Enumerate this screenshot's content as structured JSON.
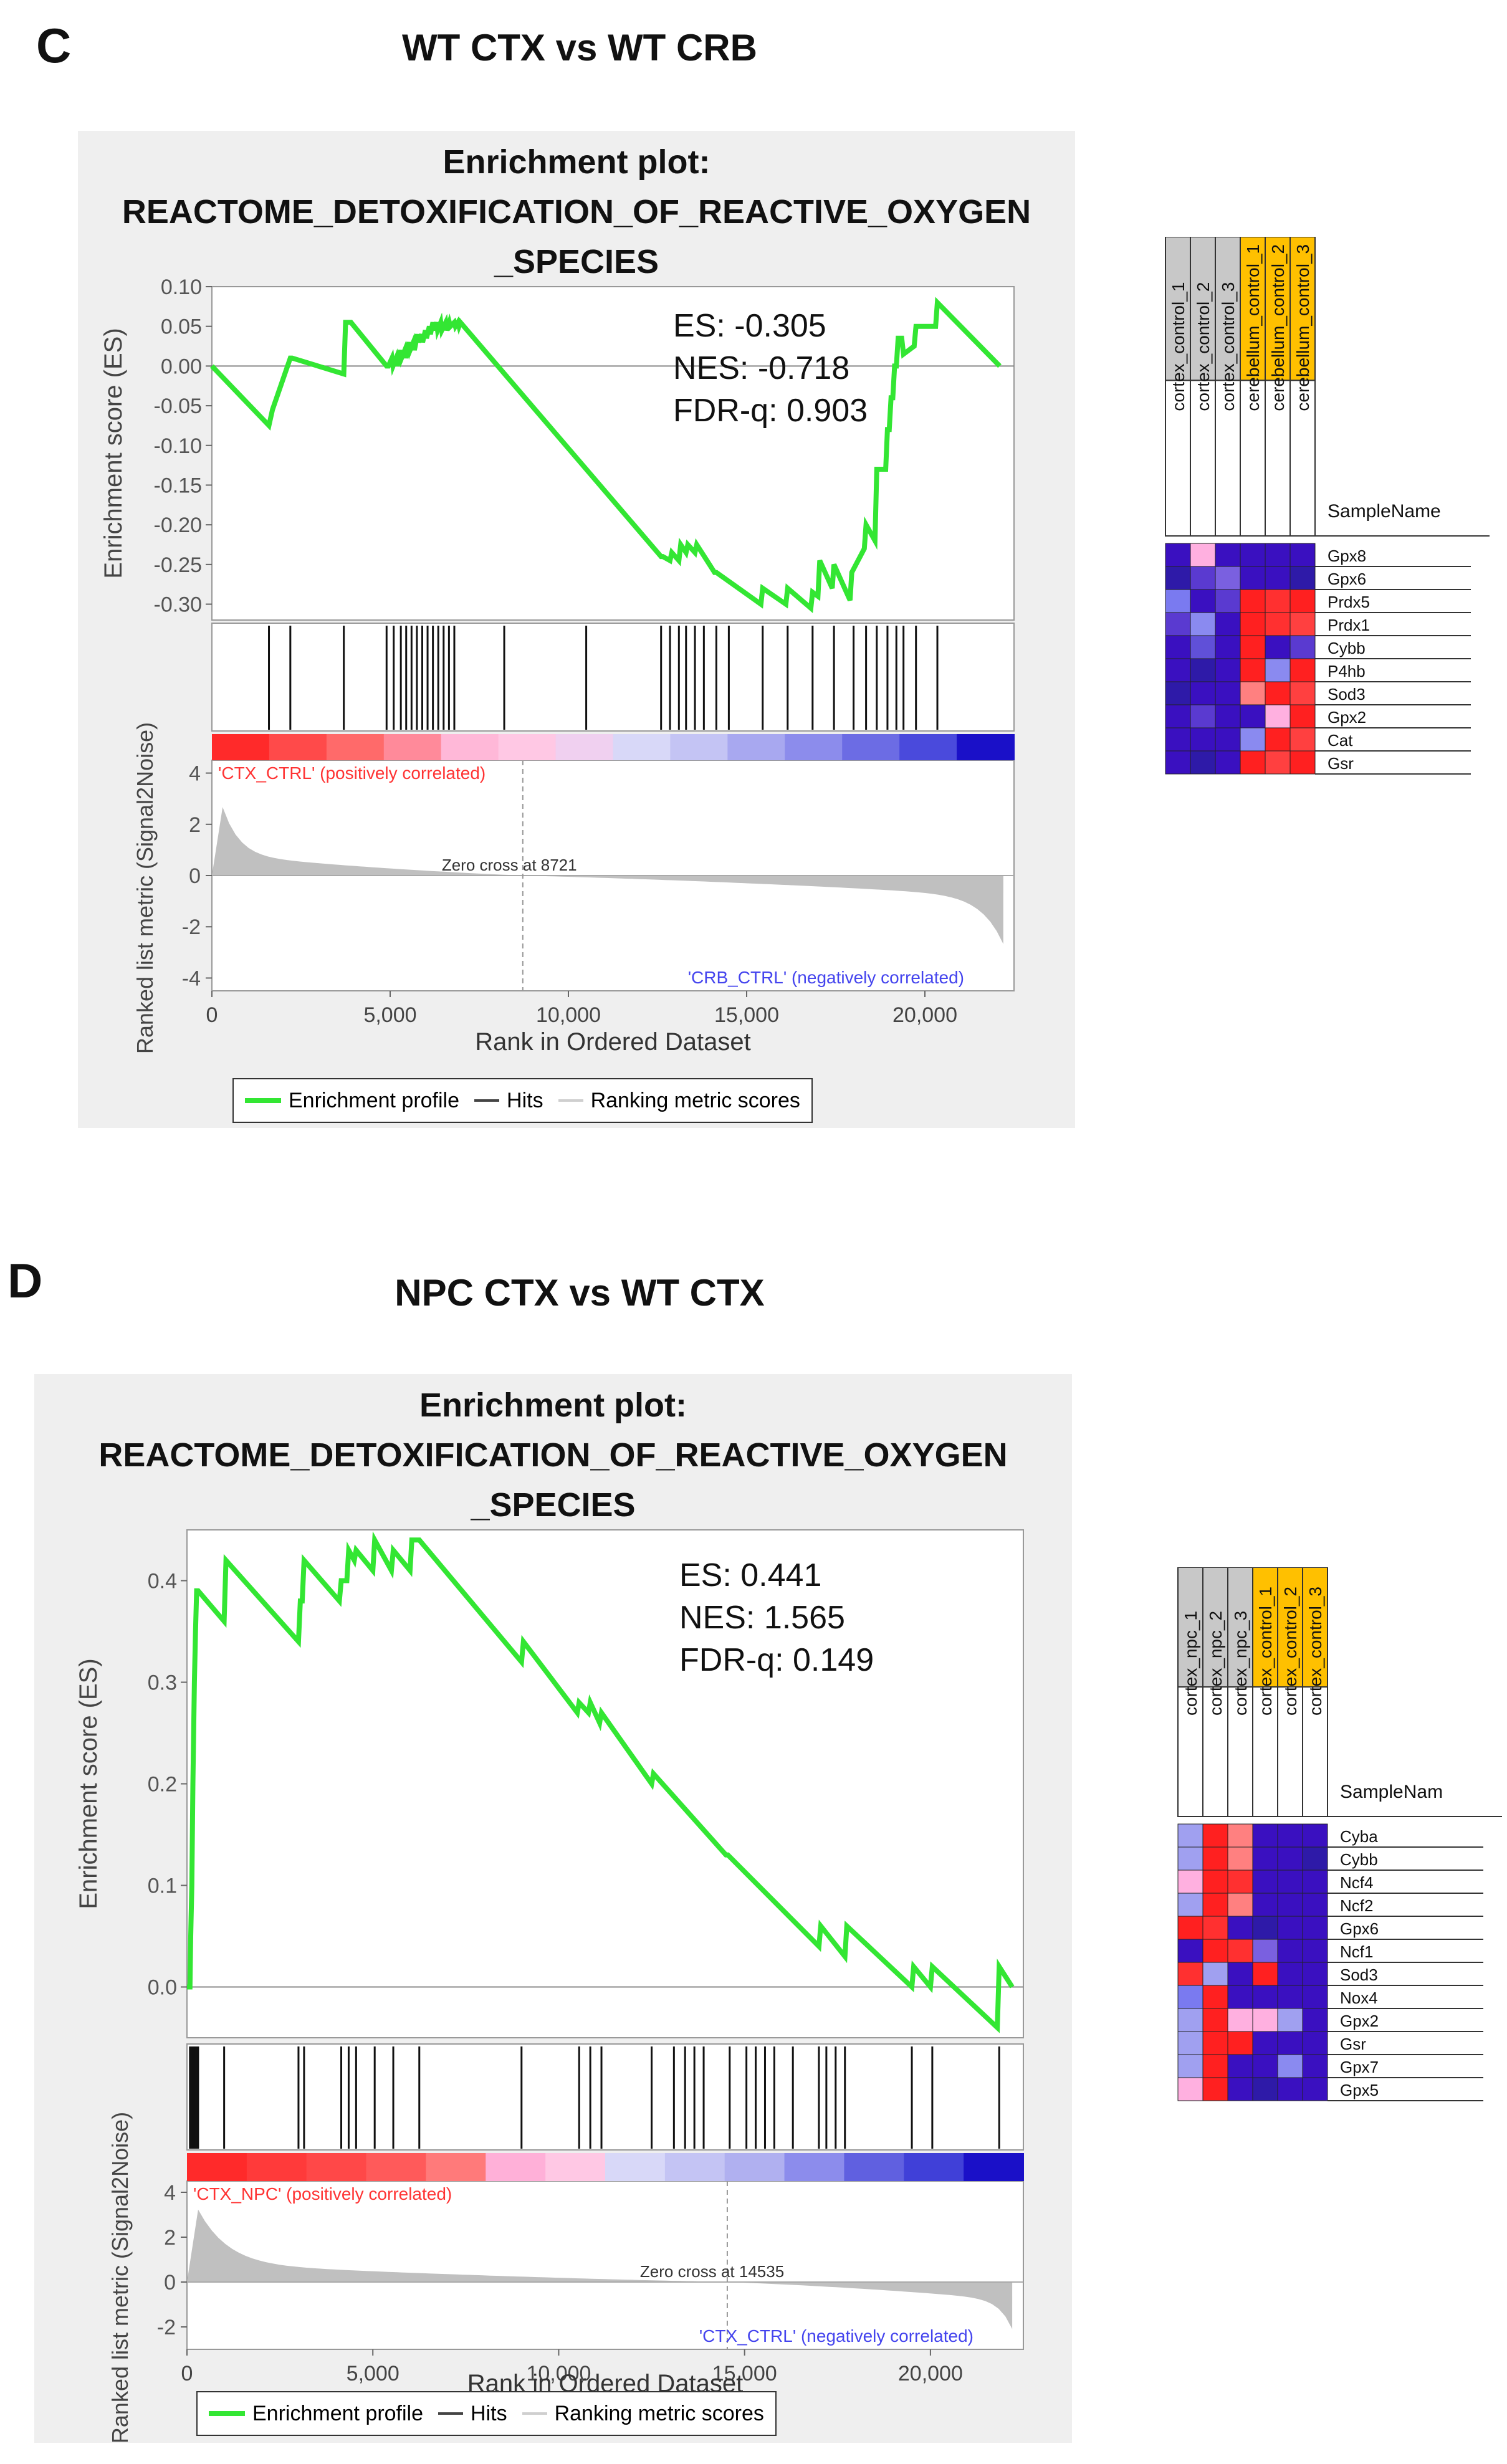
{
  "panels": [
    {
      "letter": "C",
      "heading": "WT CTX vs WT CRB",
      "plot_title": [
        "Enrichment plot:",
        "REACTOME_DETOXIFICATION_OF_REACTIVE_OXYGEN",
        "_SPECIES"
      ],
      "stats": [
        "ES: -0.305",
        "NES: -0.718",
        "FDR-q: 0.903"
      ],
      "pos_label": "'CTX_CTRL' (positively correlated)",
      "neg_label": "'CRB_CTRL' (negatively correlated)",
      "zero_cross": "Zero cross at 8721",
      "legend": [
        "Enrichment profile",
        "Hits",
        "Ranking metric scores"
      ],
      "heatmap": {
        "samples": [
          "cortex_control_1",
          "cortex_control_2",
          "cortex_control_3",
          "cerebellum_control_1",
          "cerebellum_control_2",
          "cerebellum_control_3"
        ],
        "sample_header": "SampleName",
        "genes": [
          "Gpx8",
          "Gpx6",
          "Prdx5",
          "Prdx1",
          "Cybb",
          "P4hb",
          "Sod3",
          "Gpx2",
          "Cat",
          "Gsr"
        ],
        "header_colors": [
          "#c8c8c8",
          "#c8c8c8",
          "#c8c8c8",
          "#ffc000",
          "#ffc000",
          "#ffc000"
        ],
        "cells": [
          [
            "#3a10c0",
            "#ffb0e0",
            "#3a10c0",
            "#3a10c0",
            "#3a10c0",
            "#3a10c0"
          ],
          [
            "#2e1aa8",
            "#5a3ad0",
            "#7a60e0",
            "#3a10c0",
            "#3a10c0",
            "#2e1aa8"
          ],
          [
            "#7a7af0",
            "#3a10c0",
            "#5a3ad0",
            "#ff2020",
            "#ff3030",
            "#ff2020"
          ],
          [
            "#5a3ad0",
            "#8a8af0",
            "#3a10c0",
            "#ff2020",
            "#ff3030",
            "#ff4040"
          ],
          [
            "#3a10c0",
            "#6050d8",
            "#3a10c0",
            "#ff2020",
            "#3a10c0",
            "#5a3ad0"
          ],
          [
            "#3a10c0",
            "#2e1aa8",
            "#3a10c0",
            "#ff2020",
            "#8a8af0",
            "#ff2020"
          ],
          [
            "#2e1aa8",
            "#3a10c0",
            "#3a10c0",
            "#ff8080",
            "#ff2020",
            "#ff4040"
          ],
          [
            "#3a10c0",
            "#5a3ad0",
            "#3a10c0",
            "#3a10c0",
            "#ffb0e0",
            "#ff2020"
          ],
          [
            "#3a10c0",
            "#3a10c0",
            "#3a10c0",
            "#8a8af0",
            "#ff2020",
            "#ff4040"
          ],
          [
            "#3a10c0",
            "#2e1aa8",
            "#3a10c0",
            "#ff2020",
            "#ff4040",
            "#ff2020"
          ]
        ]
      }
    },
    {
      "letter": "D",
      "heading": "NPC CTX vs WT CTX",
      "plot_title": [
        "Enrichment plot:",
        "REACTOME_DETOXIFICATION_OF_REACTIVE_OXYGEN",
        "_SPECIES"
      ],
      "stats": [
        "ES: 0.441",
        "NES: 1.565",
        "FDR-q: 0.149"
      ],
      "pos_label": "'CTX_NPC' (positively correlated)",
      "neg_label": "'CTX_CTRL' (negatively correlated)",
      "zero_cross": "Zero cross at 14535",
      "legend": [
        "Enrichment profile",
        "Hits",
        "Ranking metric scores"
      ],
      "heatmap": {
        "samples": [
          "cortex_npc_1",
          "cortex_npc_2",
          "cortex_npc_3",
          "cortex_control_1",
          "cortex_control_2",
          "cortex_control_3"
        ],
        "sample_header": "SampleNam",
        "genes": [
          "Cyba",
          "Cybb",
          "Ncf4",
          "Ncf2",
          "Gpx6",
          "Ncf1",
          "Sod3",
          "Nox4",
          "Gpx2",
          "Gsr",
          "Gpx7",
          "Gpx5"
        ],
        "header_colors": [
          "#c8c8c8",
          "#c8c8c8",
          "#c8c8c8",
          "#ffc000",
          "#ffc000",
          "#ffc000"
        ],
        "cells": [
          [
            "#a0a0f0",
            "#ff2020",
            "#ff8080",
            "#3a10c0",
            "#3a10c0",
            "#3a10c0"
          ],
          [
            "#a0a0f0",
            "#ff2020",
            "#ff8080",
            "#3a10c0",
            "#3a10c0",
            "#2e1aa8"
          ],
          [
            "#ffb0e0",
            "#ff2020",
            "#ff3030",
            "#3a10c0",
            "#3a10c0",
            "#3a10c0"
          ],
          [
            "#a0a0f0",
            "#ff2020",
            "#ff8080",
            "#3a10c0",
            "#3a10c0",
            "#3a10c0"
          ],
          [
            "#ff2020",
            "#ff3030",
            "#3a10c0",
            "#2e1aa8",
            "#3a10c0",
            "#3a10c0"
          ],
          [
            "#3a10c0",
            "#ff2020",
            "#ff3030",
            "#7a60e0",
            "#3a10c0",
            "#3a10c0"
          ],
          [
            "#ff3030",
            "#a0a0f0",
            "#3a10c0",
            "#ff2020",
            "#3a10c0",
            "#3a10c0"
          ],
          [
            "#7a7af0",
            "#ff2020",
            "#3a10c0",
            "#3a10c0",
            "#3a10c0",
            "#3a10c0"
          ],
          [
            "#a0a0f0",
            "#ff2020",
            "#ffb0e0",
            "#ffb0e0",
            "#a0a0f0",
            "#3a10c0"
          ],
          [
            "#a0a0f0",
            "#ff2020",
            "#ff2020",
            "#3a10c0",
            "#3a10c0",
            "#3a10c0"
          ],
          [
            "#a0a0f0",
            "#ff2020",
            "#3a10c0",
            "#3a10c0",
            "#8a8af0",
            "#3a10c0"
          ],
          [
            "#ffb0e0",
            "#ff2020",
            "#3a10c0",
            "#2e1aa8",
            "#3a10c0",
            "#3a10c0"
          ]
        ]
      }
    }
  ],
  "chart_data": [
    {
      "type": "line",
      "title": "Enrichment plot: REACTOME_DETOXIFICATION_OF_REACTIVE_OXYGEN_SPECIES",
      "ylabel": "Enrichment score (ES)",
      "ylim": [
        -0.32,
        0.1
      ],
      "yticks": [
        0.1,
        0.05,
        0.0,
        -0.05,
        -0.1,
        -0.15,
        -0.2,
        -0.25,
        -0.3
      ],
      "ytick_labels": [
        "0.10",
        "0.05",
        "0.00",
        "-0.05",
        "-0.10",
        "-0.15",
        "-0.20",
        "-0.25",
        "-0.30"
      ],
      "xlim": [
        0,
        22500
      ],
      "xticks": [
        0,
        5000,
        10000,
        15000,
        20000
      ],
      "xtick_labels": [
        "0",
        "5,000",
        "10,000",
        "15,000",
        "20,000"
      ],
      "xlabel": "Rank in Ordered Dataset",
      "series": [
        {
          "name": "Enrichment profile",
          "color": "#33e633",
          "x": [
            0,
            1600,
            1600,
            1700,
            2200,
            2250,
            3700,
            3750,
            3900,
            4900,
            4950,
            5050,
            5080,
            5170,
            5200,
            5290,
            5320,
            5410,
            5440,
            5530,
            5560,
            5650,
            5680,
            5770,
            5800,
            5880,
            5910,
            5990,
            6020,
            6100,
            6130,
            6200,
            6230,
            6300,
            6330,
            6420,
            6450,
            6560,
            6590,
            6660,
            6690,
            6800,
            6830,
            6900,
            6930,
            6970,
            12600,
            12650,
            12850,
            12900,
            13100,
            13150,
            13300,
            13350,
            13550,
            13600,
            14100,
            14150,
            15400,
            15450,
            16100,
            16150,
            16800,
            16850,
            17000,
            17050,
            17400,
            17450,
            17900,
            17950,
            18300,
            18350,
            18600,
            18650,
            18900,
            18950,
            19000,
            19050,
            19100,
            19150,
            19200,
            19250,
            19350,
            19400,
            19700,
            19750,
            20300,
            20350,
            22100
          ],
          "values": [
            0.0,
            -0.075,
            -0.075,
            -0.055,
            0.01,
            0.01,
            -0.01,
            0.055,
            0.055,
            0.0,
            0.0,
            0.01,
            0.0,
            0.01,
            0.0,
            0.02,
            0.01,
            0.02,
            0.01,
            0.03,
            0.02,
            0.03,
            0.02,
            0.04,
            0.03,
            0.04,
            0.03,
            0.045,
            0.035,
            0.05,
            0.04,
            0.055,
            0.045,
            0.055,
            0.045,
            0.055,
            0.045,
            0.055,
            0.045,
            0.055,
            0.05,
            0.055,
            0.05,
            0.055,
            0.05,
            0.055,
            -0.24,
            -0.24,
            -0.245,
            -0.235,
            -0.245,
            -0.225,
            -0.235,
            -0.225,
            -0.235,
            -0.225,
            -0.26,
            -0.26,
            -0.3,
            -0.28,
            -0.3,
            -0.28,
            -0.305,
            -0.285,
            -0.29,
            -0.245,
            -0.28,
            -0.25,
            -0.295,
            -0.26,
            -0.23,
            -0.2,
            -0.22,
            -0.13,
            -0.13,
            -0.08,
            -0.08,
            -0.04,
            -0.04,
            0.0,
            0.0,
            0.035,
            0.035,
            0.015,
            0.025,
            0.05,
            0.05,
            0.08,
            0.0
          ]
        }
      ],
      "hits": [
        1600,
        2200,
        3700,
        4900,
        5100,
        5300,
        5450,
        5600,
        5750,
        5900,
        6050,
        6200,
        6350,
        6500,
        6650,
        6800,
        8200,
        10500,
        12600,
        12850,
        13100,
        13300,
        13550,
        13800,
        14150,
        14500,
        15450,
        16150,
        16850,
        17450,
        18000,
        18350,
        18650,
        18950,
        19200,
        19400,
        19750,
        20350
      ],
      "ranked_metric": {
        "ylabel": "Ranked list metric (Signal2Noise)",
        "ylim": [
          -4.5,
          4.5
        ],
        "yticks": [
          4,
          2,
          0,
          -2,
          -4
        ],
        "zero_cross": 8721
      }
    },
    {
      "type": "line",
      "title": "Enrichment plot: REACTOME_DETOXIFICATION_OF_REACTIVE_OXYGEN_SPECIES",
      "ylabel": "Enrichment score (ES)",
      "ylim": [
        -0.05,
        0.45
      ],
      "yticks": [
        0.4,
        0.3,
        0.2,
        0.1,
        0.0
      ],
      "ytick_labels": [
        "0.4",
        "0.3",
        "0.2",
        "0.1",
        "0.0"
      ],
      "xlim": [
        0,
        22500
      ],
      "xticks": [
        0,
        5000,
        10000,
        15000,
        20000
      ],
      "xtick_labels": [
        "0",
        "5,000",
        "10,000",
        "15,000",
        "20,000"
      ],
      "xlabel": "Rank in Ordered Dataset",
      "series": [
        {
          "name": "Enrichment profile",
          "color": "#33e633",
          "x": [
            0,
            80,
            100,
            130,
            160,
            200,
            230,
            260,
            300,
            1000,
            1050,
            3000,
            3050,
            3100,
            3150,
            4100,
            4150,
            4300,
            4350,
            4500,
            4550,
            5000,
            5050,
            5500,
            5550,
            6000,
            6050,
            6200,
            6250,
            9000,
            9050,
            10500,
            10550,
            10800,
            10850,
            11100,
            11150,
            12500,
            12550,
            14500,
            14550,
            17000,
            17050,
            17700,
            17750,
            19500,
            19550,
            20000,
            20050,
            21800,
            21850,
            22200
          ],
          "values": [
            0.0,
            0.0,
            0.05,
            0.1,
            0.2,
            0.3,
            0.35,
            0.39,
            0.39,
            0.36,
            0.42,
            0.34,
            0.38,
            0.38,
            0.42,
            0.38,
            0.4,
            0.4,
            0.43,
            0.42,
            0.43,
            0.41,
            0.44,
            0.41,
            0.43,
            0.41,
            0.44,
            0.44,
            0.44,
            0.32,
            0.34,
            0.27,
            0.28,
            0.27,
            0.28,
            0.26,
            0.27,
            0.2,
            0.21,
            0.13,
            0.13,
            0.04,
            0.06,
            0.03,
            0.06,
            0.0,
            0.02,
            0.0,
            0.02,
            -0.04,
            0.02,
            0.0
          ]
        }
      ],
      "hits": [
        80,
        100,
        130,
        160,
        200,
        230,
        260,
        300,
        1000,
        3000,
        3150,
        4150,
        4350,
        4550,
        5050,
        5550,
        6250,
        9000,
        10550,
        10850,
        11150,
        12500,
        13100,
        13400,
        13650,
        13900,
        14600,
        15050,
        15300,
        15550,
        15800,
        16300,
        17000,
        17200,
        17450,
        17700,
        19500,
        20050,
        21850
      ],
      "ranked_metric": {
        "ylabel": "Ranked list metric (Signal2Noise)",
        "ylim": [
          -3,
          4.5
        ],
        "yticks": [
          4,
          2,
          0,
          -2
        ],
        "zero_cross": 14535
      }
    }
  ]
}
